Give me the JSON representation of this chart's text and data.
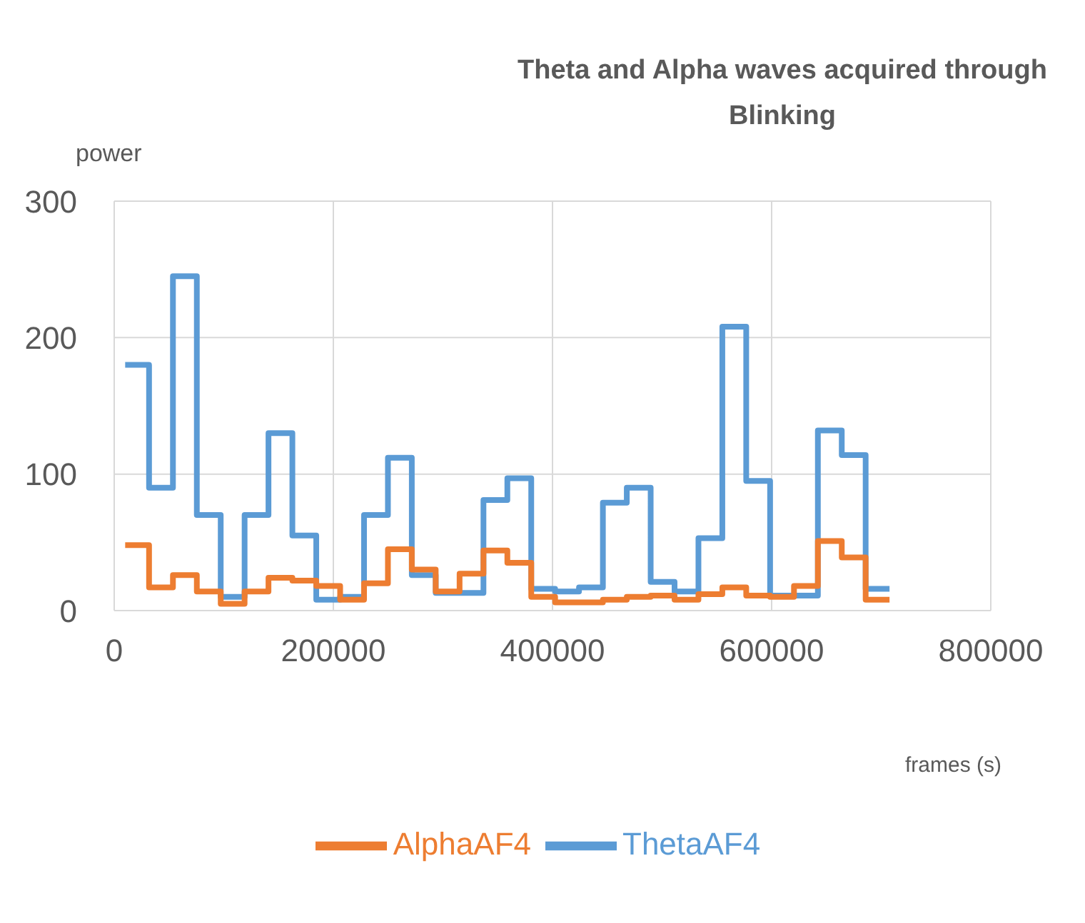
{
  "chart_data": {
    "type": "step",
    "title": "Theta and Alpha waves acquired through Blinking",
    "xlabel": "frames (s)",
    "ylabel": "power",
    "x": [
      10000,
      31800,
      53600,
      75400,
      97200,
      119000,
      140800,
      162600,
      184400,
      206200,
      228000,
      249800,
      271600,
      293400,
      315200,
      337000,
      358800,
      380600,
      402400,
      424200,
      446000,
      467800,
      489600,
      511400,
      533200,
      555000,
      576800,
      598600,
      620400,
      642200,
      664000,
      685800,
      707600
    ],
    "series": [
      {
        "name": "ThetaAF4",
        "color": "#5b9bd5",
        "values": [
          180,
          90,
          245,
          70,
          10,
          70,
          130,
          55,
          8,
          10,
          70,
          112,
          26,
          13,
          13,
          81,
          97,
          16,
          14,
          17,
          79,
          90,
          21,
          14,
          53,
          208,
          95,
          11,
          11,
          132,
          114,
          16,
          16
        ]
      },
      {
        "name": "AlphaAF4",
        "color": "#ed7d31",
        "values": [
          48,
          17,
          26,
          14,
          5,
          14,
          24,
          22,
          18,
          8,
          20,
          45,
          30,
          14,
          27,
          44,
          35,
          10,
          6,
          6,
          8,
          10,
          11,
          8,
          12,
          17,
          11,
          10,
          18,
          51,
          39,
          8,
          8
        ]
      }
    ],
    "xlim": [
      0,
      800000
    ],
    "xticks": [
      0,
      200000,
      400000,
      600000,
      800000
    ],
    "ylim": [
      0,
      300
    ],
    "yticks": [
      0,
      100,
      200,
      300
    ],
    "grid": true,
    "legend": "bottom"
  }
}
